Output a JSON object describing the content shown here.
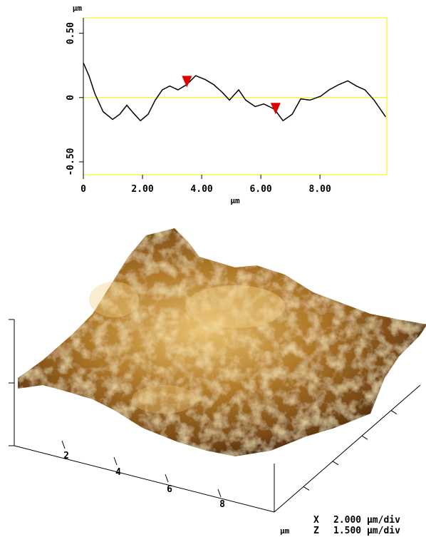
{
  "chart_data": {
    "type": "line",
    "x": [
      0,
      0.19,
      0.39,
      0.67,
      0.99,
      1.23,
      1.47,
      1.69,
      1.93,
      2.19,
      2.43,
      2.67,
      2.92,
      3.2,
      3.49,
      3.8,
      4.12,
      4.41,
      4.7,
      4.94,
      5.25,
      5.49,
      5.81,
      6.1,
      6.46,
      6.75,
      7.06,
      7.35,
      7.66,
      8.02,
      8.31,
      8.63,
      8.94,
      9.23,
      9.52,
      9.83,
      10.22
    ],
    "series": [
      {
        "color": "#000000",
        "values": [
          0.27,
          0.17,
          0.03,
          -0.11,
          -0.17,
          -0.13,
          -0.06,
          -0.12,
          -0.18,
          -0.13,
          -0.02,
          0.06,
          0.09,
          0.06,
          0.1,
          0.17,
          0.14,
          0.1,
          0.04,
          -0.02,
          0.06,
          -0.02,
          -0.07,
          -0.05,
          -0.09,
          -0.18,
          -0.13,
          -0.01,
          -0.02,
          0.01,
          0.06,
          0.1,
          0.13,
          0.09,
          0.06,
          -0.02,
          -0.15
        ]
      }
    ],
    "markers": {
      "x": [
        3.5,
        6.5
      ],
      "values": [
        0.08,
        -0.13
      ],
      "color": "#e00000"
    },
    "xlim": [
      0,
      10.26
    ],
    "ylim": [
      -0.6,
      0.62
    ],
    "xticks": [
      0,
      {
        "value": 2,
        "label": "2.00"
      },
      {
        "value": 4,
        "label": "4.00"
      },
      {
        "value": 6,
        "label": "6.00"
      },
      {
        "value": 8,
        "label": "8.00"
      }
    ],
    "yticks": [
      {
        "value": -0.5,
        "label": "-0.50"
      },
      0,
      {
        "value": 0.5,
        "label": "0.50"
      }
    ],
    "x_label": "μm",
    "y_label": "μm",
    "frame_color": "#f0f000",
    "grid": false
  },
  "surface": {
    "ticks": [
      2,
      4,
      6,
      8
    ],
    "unit": "μm",
    "scale": [
      {
        "axis": "X",
        "value": "2.000 μm/div"
      },
      {
        "axis": "Z",
        "value": "1.500 μm/div"
      }
    ]
  }
}
